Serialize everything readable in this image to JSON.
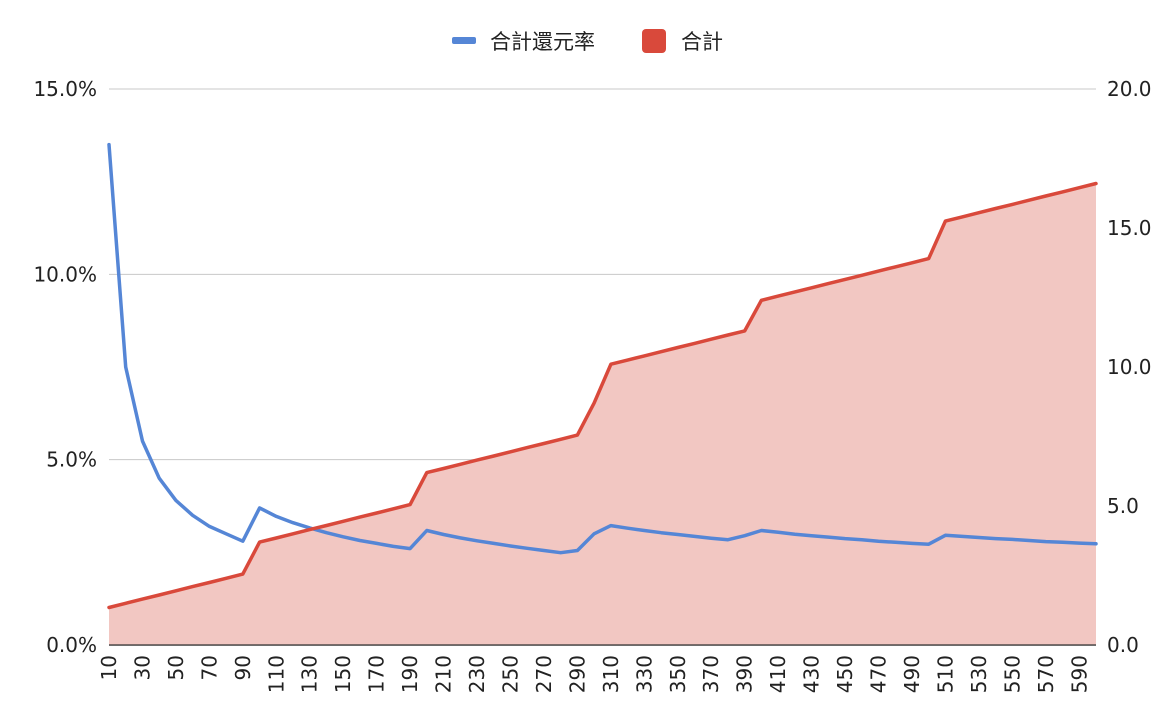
{
  "chart_data": {
    "type": "line",
    "legend": {
      "placement": "top",
      "items": [
        {
          "label": "合計還元率",
          "color": "#5586d6",
          "marker": "line"
        },
        {
          "label": "合計",
          "color": "#d9493b",
          "marker": "square"
        }
      ]
    },
    "x": [
      10,
      20,
      30,
      40,
      50,
      60,
      70,
      80,
      90,
      100,
      110,
      120,
      130,
      140,
      150,
      160,
      170,
      180,
      190,
      200,
      210,
      220,
      230,
      240,
      250,
      260,
      270,
      280,
      290,
      300,
      310,
      320,
      330,
      340,
      350,
      360,
      370,
      380,
      390,
      400,
      410,
      420,
      430,
      440,
      450,
      460,
      470,
      480,
      490,
      500,
      510,
      520,
      530,
      540,
      550,
      560,
      570,
      580,
      590,
      600
    ],
    "x_tick_labels": [
      "10",
      "30",
      "50",
      "70",
      "90",
      "110",
      "130",
      "150",
      "170",
      "190",
      "210",
      "230",
      "250",
      "270",
      "290",
      "310",
      "330",
      "350",
      "370",
      "390",
      "410",
      "430",
      "450",
      "470",
      "490",
      "510",
      "530",
      "550",
      "570",
      "590"
    ],
    "left_axis": {
      "ylim": [
        0,
        15
      ],
      "tick_labels": [
        "0.0%",
        "5.0%",
        "10.0%",
        "15.0%"
      ]
    },
    "right_axis": {
      "ylim": [
        0,
        20
      ],
      "tick_labels": [
        "0.0",
        "5.0",
        "10.0",
        "15.0",
        "20.0"
      ]
    },
    "grid": true,
    "series": [
      {
        "name": "合計還元率",
        "type": "line",
        "axis": "left",
        "color": "#5586d6",
        "values": [
          13.5,
          7.5,
          5.5,
          4.5,
          3.9,
          3.5,
          3.2,
          3.0,
          2.8,
          3.7,
          3.47,
          3.3,
          3.16,
          3.03,
          2.92,
          2.82,
          2.74,
          2.66,
          2.6,
          3.09,
          2.98,
          2.89,
          2.81,
          2.74,
          2.67,
          2.61,
          2.55,
          2.49,
          2.55,
          3.0,
          3.22,
          3.15,
          3.09,
          3.03,
          2.98,
          2.93,
          2.88,
          2.84,
          2.95,
          3.09,
          3.04,
          2.99,
          2.95,
          2.91,
          2.87,
          2.84,
          2.8,
          2.77,
          2.74,
          2.72,
          2.96,
          2.93,
          2.9,
          2.87,
          2.85,
          2.82,
          2.79,
          2.77,
          2.75,
          2.73
        ]
      },
      {
        "name": "合計",
        "type": "area",
        "axis": "right",
        "color": "#d9493b",
        "fill": "#f2c7c2",
        "values": [
          1.35,
          1.5,
          1.65,
          1.8,
          1.95,
          2.1,
          2.25,
          2.4,
          2.55,
          3.7,
          3.85,
          4.0,
          4.15,
          4.3,
          4.45,
          4.6,
          4.75,
          4.9,
          5.05,
          6.2,
          6.35,
          6.5,
          6.65,
          6.8,
          6.95,
          7.1,
          7.25,
          7.4,
          7.55,
          8.7,
          10.1,
          10.25,
          10.4,
          10.55,
          10.7,
          10.85,
          11.0,
          11.15,
          11.3,
          12.4,
          12.55,
          12.7,
          12.85,
          13.0,
          13.15,
          13.3,
          13.45,
          13.6,
          13.75,
          13.9,
          15.25,
          15.4,
          15.55,
          15.7,
          15.85,
          16.0,
          16.15,
          16.3,
          16.45,
          16.6
        ]
      }
    ]
  }
}
